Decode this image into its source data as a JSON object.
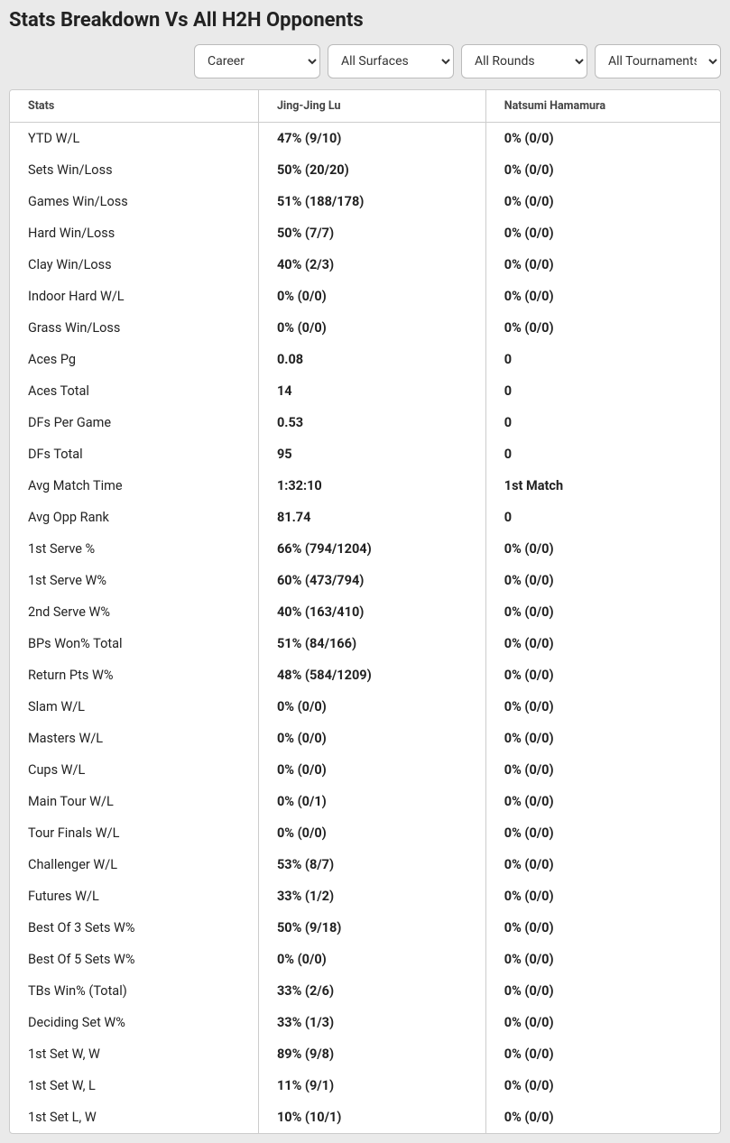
{
  "title": "Stats Breakdown Vs All H2H Opponents",
  "filters": {
    "period": {
      "selected": "Career",
      "options": [
        "Career"
      ]
    },
    "surface": {
      "selected": "All Surfaces",
      "options": [
        "All Surfaces"
      ]
    },
    "round": {
      "selected": "All Rounds",
      "options": [
        "All Rounds"
      ]
    },
    "tournament": {
      "selected": "All Tournaments",
      "options": [
        "All Tournaments"
      ]
    }
  },
  "table": {
    "columns": [
      "Stats",
      "Jing-Jing Lu",
      "Natsumi Hamamura"
    ],
    "rows": [
      [
        "YTD W/L",
        "47% (9/10)",
        "0% (0/0)"
      ],
      [
        "Sets Win/Loss",
        "50% (20/20)",
        "0% (0/0)"
      ],
      [
        "Games Win/Loss",
        "51% (188/178)",
        "0% (0/0)"
      ],
      [
        "Hard Win/Loss",
        "50% (7/7)",
        "0% (0/0)"
      ],
      [
        "Clay Win/Loss",
        "40% (2/3)",
        "0% (0/0)"
      ],
      [
        "Indoor Hard W/L",
        "0% (0/0)",
        "0% (0/0)"
      ],
      [
        "Grass Win/Loss",
        "0% (0/0)",
        "0% (0/0)"
      ],
      [
        "Aces Pg",
        "0.08",
        "0"
      ],
      [
        "Aces Total",
        "14",
        "0"
      ],
      [
        "DFs Per Game",
        "0.53",
        "0"
      ],
      [
        "DFs Total",
        "95",
        "0"
      ],
      [
        "Avg Match Time",
        "1:32:10",
        "1st Match"
      ],
      [
        "Avg Opp Rank",
        "81.74",
        "0"
      ],
      [
        "1st Serve %",
        "66% (794/1204)",
        "0% (0/0)"
      ],
      [
        "1st Serve W%",
        "60% (473/794)",
        "0% (0/0)"
      ],
      [
        "2nd Serve W%",
        "40% (163/410)",
        "0% (0/0)"
      ],
      [
        "BPs Won% Total",
        "51% (84/166)",
        "0% (0/0)"
      ],
      [
        "Return Pts W%",
        "48% (584/1209)",
        "0% (0/0)"
      ],
      [
        "Slam W/L",
        "0% (0/0)",
        "0% (0/0)"
      ],
      [
        "Masters W/L",
        "0% (0/0)",
        "0% (0/0)"
      ],
      [
        "Cups W/L",
        "0% (0/0)",
        "0% (0/0)"
      ],
      [
        "Main Tour W/L",
        "0% (0/1)",
        "0% (0/0)"
      ],
      [
        "Tour Finals W/L",
        "0% (0/0)",
        "0% (0/0)"
      ],
      [
        "Challenger W/L",
        "53% (8/7)",
        "0% (0/0)"
      ],
      [
        "Futures W/L",
        "33% (1/2)",
        "0% (0/0)"
      ],
      [
        "Best Of 3 Sets W%",
        "50% (9/18)",
        "0% (0/0)"
      ],
      [
        "Best Of 5 Sets W%",
        "0% (0/0)",
        "0% (0/0)"
      ],
      [
        "TBs Win% (Total)",
        "33% (2/6)",
        "0% (0/0)"
      ],
      [
        "Deciding Set W%",
        "33% (1/3)",
        "0% (0/0)"
      ],
      [
        "1st Set W, W",
        "89% (9/8)",
        "0% (0/0)"
      ],
      [
        "1st Set W, L",
        "11% (9/1)",
        "0% (0/0)"
      ],
      [
        "1st Set L, W",
        "10% (10/1)",
        "0% (0/0)"
      ]
    ]
  }
}
